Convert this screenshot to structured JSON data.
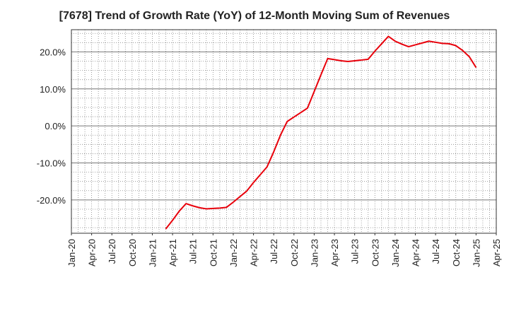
{
  "chart_data": {
    "type": "line",
    "title": "[7678]  Trend of Growth Rate (YoY) of 12-Month Moving Sum of Revenues",
    "xlabel": "",
    "ylabel": "",
    "x_tick_labels": [
      "Jan-20",
      "Apr-20",
      "Jul-20",
      "Oct-20",
      "Jan-21",
      "Apr-21",
      "Jul-21",
      "Oct-21",
      "Jan-22",
      "Apr-22",
      "Jul-22",
      "Oct-22",
      "Jan-23",
      "Apr-23",
      "Jul-23",
      "Oct-23",
      "Jan-24",
      "Apr-24",
      "Jul-24",
      "Oct-24",
      "Jan-25",
      "Apr-25"
    ],
    "y_tick_labels": [
      "-20.0%",
      "-10.0%",
      "0.0%",
      "10.0%",
      "20.0%"
    ],
    "y_ticks": [
      -20,
      -10,
      0,
      10,
      20
    ],
    "ylim": [
      -29.0,
      26.0
    ],
    "x_range_months": [
      0,
      63
    ],
    "grid": true,
    "legend": "none",
    "line_color": "#e8000b",
    "series": [
      {
        "x_labels": [
          "Mar-21",
          "Apr-21",
          "May-21",
          "Jun-21",
          "Jul-21",
          "Aug-21",
          "Sep-21",
          "Oct-21",
          "Nov-21",
          "Dec-21",
          "Jan-22",
          "Feb-22",
          "Mar-22",
          "Apr-22",
          "May-22",
          "Jun-22",
          "Jul-22",
          "Aug-22",
          "Sep-22",
          "Oct-22",
          "Nov-22",
          "Dec-22",
          "Jan-23",
          "Feb-23",
          "Mar-23",
          "Apr-23",
          "May-23",
          "Jun-23",
          "Jul-23",
          "Aug-23",
          "Sep-23",
          "Oct-23",
          "Nov-23",
          "Dec-23",
          "Jan-24",
          "Feb-24",
          "Mar-24",
          "Apr-24",
          "May-24",
          "Jun-24",
          "Jul-24",
          "Aug-24",
          "Sep-24",
          "Oct-24",
          "Nov-24",
          "Dec-24",
          "Jan-25"
        ],
        "x": [
          14,
          15,
          16,
          17,
          18,
          19,
          20,
          21,
          22,
          23,
          24,
          25,
          26,
          27,
          28,
          29,
          30,
          31,
          32,
          33,
          34,
          35,
          36,
          37,
          38,
          39,
          40,
          41,
          42,
          43,
          44,
          45,
          46,
          47,
          48,
          49,
          50,
          51,
          52,
          53,
          54,
          55,
          56,
          57,
          58,
          59,
          60
        ],
        "values": [
          -27.8,
          -25.5,
          -23.0,
          -21.0,
          -21.6,
          -22.1,
          -22.4,
          -22.3,
          -22.2,
          -22.0,
          -20.6,
          -19.1,
          -17.6,
          -15.3,
          -13.2,
          -11.1,
          -7.0,
          -2.5,
          1.2,
          2.4,
          3.6,
          4.8,
          9.3,
          13.8,
          18.2,
          17.9,
          17.6,
          17.4,
          17.6,
          17.8,
          18.0,
          20.2,
          22.2,
          24.2,
          22.9,
          22.1,
          21.4,
          21.9,
          22.4,
          22.9,
          22.6,
          22.3,
          22.2,
          21.7,
          20.4,
          18.7,
          15.8
        ]
      }
    ]
  }
}
